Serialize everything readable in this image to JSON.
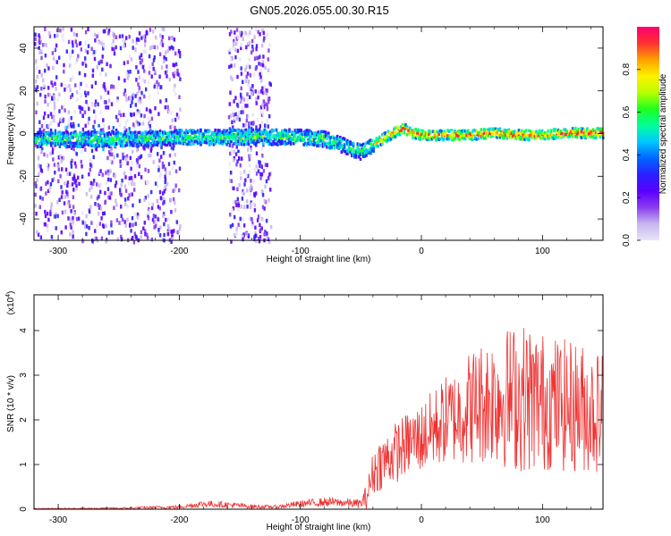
{
  "title": "GN05.2026.055.00.30.R15",
  "chart_data": [
    {
      "type": "heatmap",
      "name": "spectrogram",
      "xlabel": "Height of straight line (km)",
      "ylabel": "Frequency (Hz)",
      "xlim": [
        -320,
        150
      ],
      "ylim": [
        -50,
        50
      ],
      "xticks": [
        -300,
        -200,
        -100,
        0,
        100
      ],
      "yticks": [
        -40,
        -20,
        0,
        20,
        40
      ],
      "colorbar": {
        "label": "Normalized spectral amplitude",
        "ticks": [
          0,
          0.2,
          0.4,
          0.6,
          0.8
        ],
        "range": [
          0,
          1
        ],
        "colormap": [
          "#e9e4f7",
          "#c8b6f0",
          "#8a3cf0",
          "#5a00ff",
          "#2a20ff",
          "#0066ff",
          "#00c8ff",
          "#00ff9a",
          "#20ff20",
          "#b8ff00",
          "#fff000",
          "#ffa000",
          "#ff3030",
          "#ff0070"
        ]
      },
      "ridge": {
        "description_points_x": [
          -320,
          -250,
          -200,
          -150,
          -100,
          -80,
          -70,
          -60,
          -50,
          -45,
          -40,
          -30,
          -20,
          -15,
          -10,
          0,
          20,
          40,
          60,
          80,
          100,
          120,
          150
        ],
        "frequency_hz": [
          -2,
          -2,
          -1,
          -1,
          -1,
          -2,
          -4,
          -6,
          -8,
          -6,
          -4,
          -1,
          2,
          3,
          1,
          0,
          0,
          0,
          1,
          0,
          0,
          1,
          1
        ]
      },
      "noise_bands_km": [
        [
          -320,
          -200
        ],
        [
          -160,
          -125
        ]
      ]
    },
    {
      "type": "line",
      "name": "snr",
      "xlabel": "Height of straight line (km)",
      "ylabel": "SNR (10 * v/v)",
      "yscale_label": "(x10",
      "yscale_exp": "4",
      "xlim": [
        -320,
        150
      ],
      "ylim": [
        0,
        4.8
      ],
      "xticks": [
        -300,
        -200,
        -100,
        0,
        100
      ],
      "yticks": [
        0,
        1,
        2,
        3,
        4
      ],
      "color": "#ee3333",
      "envelope": {
        "x": [
          -320,
          -250,
          -200,
          -180,
          -160,
          -140,
          -120,
          -100,
          -80,
          -60,
          -50,
          -45,
          -40,
          -35,
          -30,
          -20,
          -10,
          0,
          10,
          20,
          30,
          40,
          50,
          60,
          70,
          80,
          90,
          100,
          110,
          120,
          130,
          140,
          150
        ],
        "mean": [
          0.01,
          0.02,
          0.05,
          0.12,
          0.1,
          0.06,
          0.05,
          0.12,
          0.16,
          0.14,
          0.12,
          0.3,
          0.8,
          1.0,
          1.1,
          1.3,
          1.5,
          1.6,
          1.8,
          2.0,
          2.1,
          2.3,
          2.4,
          2.5,
          2.5,
          2.5,
          2.5,
          2.4,
          2.4,
          2.3,
          2.3,
          2.2,
          2.2
        ],
        "spread": [
          0.01,
          0.02,
          0.04,
          0.08,
          0.07,
          0.05,
          0.04,
          0.08,
          0.1,
          0.1,
          0.1,
          0.3,
          0.5,
          0.6,
          0.6,
          0.7,
          0.7,
          0.8,
          0.9,
          1.0,
          1.1,
          1.3,
          1.4,
          1.5,
          1.6,
          1.7,
          1.7,
          1.6,
          1.5,
          1.5,
          1.5,
          1.4,
          1.4
        ]
      }
    }
  ]
}
